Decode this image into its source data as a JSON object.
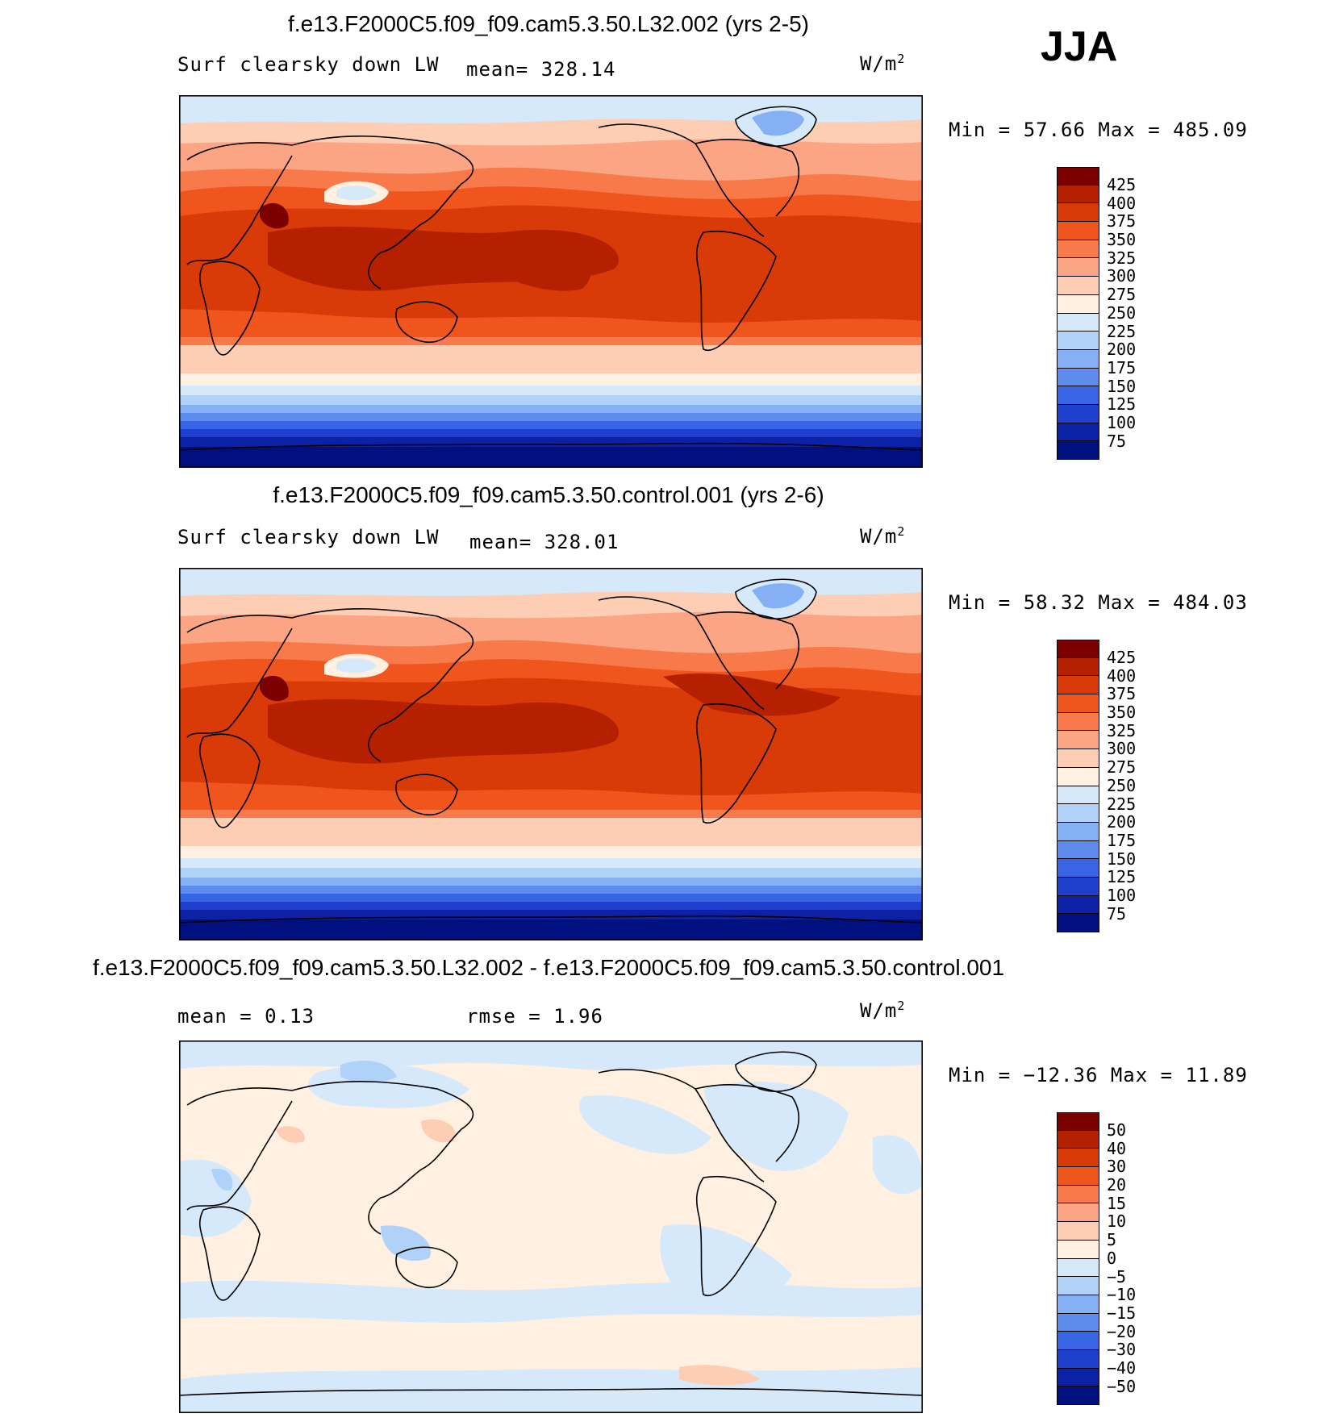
{
  "season": "JJA",
  "panels": [
    {
      "title": "f.e13.F2000C5.f09_f09.cam5.3.50.L32.002 (yrs 2-5)",
      "variable": "Surf clearsky down LW",
      "stat1": "mean= 328.14",
      "stat2": "",
      "units_base": "W/m",
      "units_exp": "2",
      "minmax": "Min =   57.66 Max = 485.09",
      "legend_labels": [
        "425",
        "400",
        "375",
        "350",
        "325",
        "300",
        "275",
        "250",
        "225",
        "200",
        "175",
        "150",
        "125",
        "100",
        "75"
      ],
      "colors": [
        "#7b0000",
        "#b52000",
        "#d83a08",
        "#f0551e",
        "#f87a4a",
        "#fca584",
        "#fdcdb4",
        "#fff0e2",
        "#d6e9fb",
        "#b0d2f8",
        "#86b0f4",
        "#5d8cec",
        "#3765e3",
        "#1f40cf",
        "#0c22a6",
        "#00117f"
      ]
    },
    {
      "title": "f.e13.F2000C5.f09_f09.cam5.3.50.control.001 (yrs 2-6)",
      "variable": "Surf clearsky down LW",
      "stat1": "mean= 328.01",
      "stat2": "",
      "units_base": "W/m",
      "units_exp": "2",
      "minmax": "Min =   58.32 Max = 484.03",
      "legend_labels": [
        "425",
        "400",
        "375",
        "350",
        "325",
        "300",
        "275",
        "250",
        "225",
        "200",
        "175",
        "150",
        "125",
        "100",
        "75"
      ],
      "colors": [
        "#7b0000",
        "#b52000",
        "#d83a08",
        "#f0551e",
        "#f87a4a",
        "#fca584",
        "#fdcdb4",
        "#fff0e2",
        "#d6e9fb",
        "#b0d2f8",
        "#86b0f4",
        "#5d8cec",
        "#3765e3",
        "#1f40cf",
        "#0c22a6",
        "#00117f"
      ]
    },
    {
      "title": "f.e13.F2000C5.f09_f09.cam5.3.50.L32.002 - f.e13.F2000C5.f09_f09.cam5.3.50.control.001",
      "variable": "",
      "stat1": "mean =    0.13",
      "stat2": "rmse =    1.96",
      "units_base": "W/m",
      "units_exp": "2",
      "minmax": "Min = −12.36 Max =   11.89",
      "legend_labels": [
        "50",
        "40",
        "30",
        "20",
        "15",
        "10",
        "5",
        "0",
        "−5",
        "−10",
        "−15",
        "−20",
        "−30",
        "−40",
        "−50"
      ],
      "colors": [
        "#7b0000",
        "#b52000",
        "#d83a08",
        "#f0551e",
        "#f87a4a",
        "#fca584",
        "#fdcdb4",
        "#fff0e2",
        "#d6e9fb",
        "#b0d2f8",
        "#86b0f4",
        "#5d8cec",
        "#3765e3",
        "#1f40cf",
        "#0c22a6",
        "#00117f"
      ]
    }
  ]
}
